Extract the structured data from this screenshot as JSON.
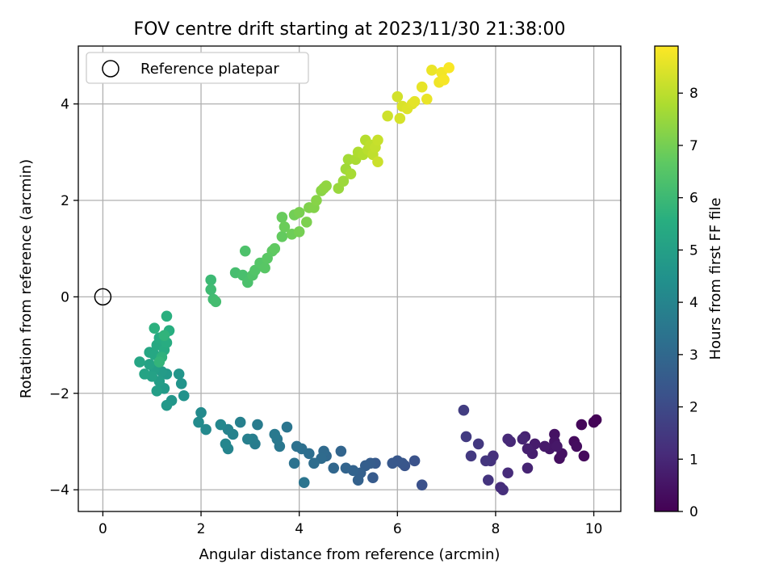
{
  "chart_data": {
    "type": "scatter",
    "title": "FOV centre drift starting at 2023/11/30 21:38:00",
    "xlabel": "Angular distance from reference (arcmin)",
    "ylabel": "Rotation from reference (arcmin)",
    "xlim": [
      -0.5,
      10.55
    ],
    "ylim": [
      -4.45,
      5.2
    ],
    "xticks": [
      0,
      2,
      4,
      6,
      8,
      10
    ],
    "xtick_labels": [
      "0",
      "2",
      "4",
      "6",
      "8",
      "10"
    ],
    "yticks": [
      -4,
      -2,
      0,
      2,
      4
    ],
    "ytick_labels": [
      "−4",
      "−2",
      "0",
      "2",
      "4"
    ],
    "grid": true,
    "legend": {
      "position": "top-left",
      "label": "Reference platepar"
    },
    "reference_point": {
      "x": 0,
      "y": 0
    },
    "colorbar": {
      "label": "Hours from first FF file",
      "colormap": "viridis",
      "range": [
        0,
        8.9
      ],
      "ticks": [
        0,
        1,
        2,
        3,
        4,
        5,
        6,
        7,
        8
      ],
      "tick_labels": [
        "0",
        "1",
        "2",
        "3",
        "4",
        "5",
        "6",
        "7",
        "8"
      ]
    },
    "points": [
      [
        10.05,
        -2.55,
        0.05
      ],
      [
        10.0,
        -2.6,
        0.1
      ],
      [
        9.75,
        -2.65,
        0.15
      ],
      [
        9.8,
        -3.3,
        0.2
      ],
      [
        9.6,
        -3.0,
        0.25
      ],
      [
        9.65,
        -3.1,
        0.3
      ],
      [
        9.3,
        -3.35,
        0.35
      ],
      [
        9.35,
        -3.25,
        0.4
      ],
      [
        9.2,
        -2.85,
        0.45
      ],
      [
        9.2,
        -3.0,
        0.5
      ],
      [
        9.1,
        -3.15,
        0.55
      ],
      [
        9.25,
        -3.1,
        0.6
      ],
      [
        9.0,
        -3.1,
        0.65
      ],
      [
        8.8,
        -3.05,
        0.7
      ],
      [
        8.75,
        -3.25,
        0.75
      ],
      [
        8.65,
        -3.15,
        0.8
      ],
      [
        8.6,
        -2.9,
        0.85
      ],
      [
        8.65,
        -3.55,
        0.9
      ],
      [
        8.55,
        -2.95,
        0.95
      ],
      [
        8.3,
        -3.0,
        1.0
      ],
      [
        8.25,
        -2.95,
        1.05
      ],
      [
        8.25,
        -3.65,
        1.1
      ],
      [
        8.1,
        -3.95,
        1.15
      ],
      [
        8.15,
        -4.0,
        1.2
      ],
      [
        7.95,
        -3.3,
        1.25
      ],
      [
        7.9,
        -3.4,
        1.3
      ],
      [
        7.85,
        -3.8,
        1.35
      ],
      [
        7.8,
        -3.4,
        1.4
      ],
      [
        7.65,
        -3.05,
        1.45
      ],
      [
        7.5,
        -3.3,
        1.5
      ],
      [
        7.4,
        -2.9,
        1.55
      ],
      [
        7.35,
        -2.35,
        1.6
      ],
      [
        6.5,
        -3.9,
        2.2
      ],
      [
        6.35,
        -3.4,
        2.25
      ],
      [
        6.15,
        -3.5,
        2.3
      ],
      [
        6.1,
        -3.45,
        2.35
      ],
      [
        6.0,
        -3.4,
        2.4
      ],
      [
        5.9,
        -3.45,
        2.45
      ],
      [
        5.55,
        -3.45,
        2.5
      ],
      [
        5.5,
        -3.75,
        2.55
      ],
      [
        5.45,
        -3.45,
        2.6
      ],
      [
        5.35,
        -3.5,
        2.65
      ],
      [
        5.25,
        -3.65,
        2.7
      ],
      [
        5.2,
        -3.8,
        2.75
      ],
      [
        5.1,
        -3.6,
        2.8
      ],
      [
        4.95,
        -3.55,
        2.85
      ],
      [
        4.85,
        -3.2,
        2.9
      ],
      [
        4.7,
        -3.55,
        2.95
      ],
      [
        4.55,
        -3.3,
        3.0
      ],
      [
        4.5,
        -3.2,
        3.05
      ],
      [
        4.45,
        -3.35,
        3.1
      ],
      [
        4.3,
        -3.45,
        3.15
      ],
      [
        4.2,
        -3.25,
        3.2
      ],
      [
        4.05,
        -3.15,
        3.25
      ],
      [
        3.95,
        -3.1,
        3.3
      ],
      [
        3.9,
        -3.45,
        3.35
      ],
      [
        4.1,
        -3.85,
        3.4
      ],
      [
        3.75,
        -2.7,
        3.45
      ],
      [
        3.6,
        -3.1,
        3.5
      ],
      [
        3.55,
        -2.95,
        3.55
      ],
      [
        3.5,
        -2.85,
        3.6
      ],
      [
        3.15,
        -2.65,
        3.65
      ],
      [
        3.1,
        -3.05,
        3.7
      ],
      [
        3.05,
        -2.95,
        3.75
      ],
      [
        2.95,
        -2.95,
        3.8
      ],
      [
        2.8,
        -2.6,
        3.85
      ],
      [
        2.65,
        -2.85,
        3.9
      ],
      [
        2.55,
        -2.75,
        3.95
      ],
      [
        2.55,
        -3.15,
        4.0
      ],
      [
        2.5,
        -3.05,
        4.05
      ],
      [
        2.4,
        -2.65,
        4.1
      ],
      [
        2.1,
        -2.75,
        4.15
      ],
      [
        2.0,
        -2.4,
        4.2
      ],
      [
        1.95,
        -2.6,
        4.25
      ],
      [
        1.65,
        -2.05,
        4.5
      ],
      [
        1.6,
        -1.8,
        4.55
      ],
      [
        1.55,
        -1.6,
        4.6
      ],
      [
        1.4,
        -2.15,
        4.65
      ],
      [
        1.3,
        -2.25,
        4.7
      ],
      [
        1.3,
        -1.6,
        4.75
      ],
      [
        1.25,
        -1.9,
        4.8
      ],
      [
        1.2,
        -1.55,
        4.85
      ],
      [
        1.15,
        -1.75,
        4.9
      ],
      [
        1.1,
        -1.95,
        4.95
      ],
      [
        1.05,
        -1.5,
        5.0
      ],
      [
        1.0,
        -1.65,
        5.05
      ],
      [
        0.95,
        -1.4,
        5.1
      ],
      [
        0.85,
        -1.6,
        5.15
      ],
      [
        0.75,
        -1.35,
        5.2
      ],
      [
        0.95,
        -1.15,
        5.25
      ],
      [
        1.05,
        -1.2,
        5.3
      ],
      [
        1.1,
        -1.0,
        5.35
      ],
      [
        1.15,
        -0.85,
        5.4
      ],
      [
        1.25,
        -1.1,
        5.45
      ],
      [
        1.3,
        -0.95,
        5.5
      ],
      [
        1.35,
        -0.7,
        5.55
      ],
      [
        1.3,
        -0.4,
        5.6
      ],
      [
        1.05,
        -0.65,
        5.65
      ],
      [
        1.2,
        -1.25,
        5.7
      ],
      [
        1.25,
        -0.8,
        5.75
      ],
      [
        1.15,
        -1.35,
        5.8
      ],
      [
        2.2,
        0.35,
        6.0
      ],
      [
        2.2,
        0.15,
        6.05
      ],
      [
        2.25,
        -0.05,
        6.1
      ],
      [
        2.3,
        -0.1,
        6.15
      ],
      [
        2.7,
        0.5,
        6.2
      ],
      [
        2.85,
        0.45,
        6.25
      ],
      [
        2.95,
        0.3,
        6.3
      ],
      [
        2.9,
        0.95,
        6.35
      ],
      [
        3.05,
        0.45,
        6.4
      ],
      [
        3.1,
        0.55,
        6.45
      ],
      [
        3.2,
        0.7,
        6.5
      ],
      [
        3.3,
        0.6,
        6.55
      ],
      [
        3.35,
        0.8,
        6.6
      ],
      [
        3.45,
        0.95,
        6.65
      ],
      [
        3.5,
        1.0,
        6.7
      ],
      [
        3.65,
        1.25,
        6.75
      ],
      [
        3.65,
        1.65,
        6.8
      ],
      [
        3.7,
        1.45,
        6.85
      ],
      [
        3.85,
        1.3,
        6.9
      ],
      [
        3.9,
        1.7,
        6.95
      ],
      [
        4.0,
        1.35,
        7.0
      ],
      [
        4.0,
        1.75,
        7.05
      ],
      [
        4.15,
        1.55,
        7.1
      ],
      [
        4.2,
        1.85,
        7.15
      ],
      [
        4.3,
        1.85,
        7.2
      ],
      [
        4.35,
        2.0,
        7.25
      ],
      [
        4.45,
        2.2,
        7.3
      ],
      [
        4.5,
        2.25,
        7.35
      ],
      [
        4.55,
        2.3,
        7.4
      ],
      [
        4.8,
        2.25,
        7.5
      ],
      [
        4.9,
        2.4,
        7.55
      ],
      [
        4.95,
        2.65,
        7.6
      ],
      [
        5.0,
        2.85,
        7.65
      ],
      [
        5.05,
        2.55,
        7.7
      ],
      [
        5.15,
        2.85,
        7.75
      ],
      [
        5.2,
        3.0,
        7.8
      ],
      [
        5.3,
        2.95,
        7.85
      ],
      [
        5.35,
        3.25,
        7.9
      ],
      [
        5.4,
        3.05,
        7.95
      ],
      [
        5.45,
        3.15,
        8.0
      ],
      [
        5.5,
        2.95,
        8.05
      ],
      [
        5.55,
        3.1,
        8.1
      ],
      [
        5.6,
        3.25,
        8.15
      ],
      [
        5.6,
        2.8,
        8.2
      ],
      [
        5.8,
        3.75,
        8.25
      ],
      [
        6.0,
        4.15,
        8.3
      ],
      [
        6.05,
        3.7,
        8.35
      ],
      [
        6.1,
        3.95,
        8.4
      ],
      [
        6.2,
        3.9,
        8.45
      ],
      [
        6.3,
        4.0,
        8.5
      ],
      [
        6.35,
        4.05,
        8.55
      ],
      [
        6.5,
        4.35,
        8.6
      ],
      [
        6.6,
        4.1,
        8.62
      ],
      [
        6.7,
        4.7,
        8.65
      ],
      [
        6.85,
        4.45,
        8.7
      ],
      [
        6.9,
        4.65,
        8.75
      ],
      [
        6.95,
        4.5,
        8.8
      ],
      [
        7.05,
        4.75,
        8.85
      ]
    ]
  }
}
